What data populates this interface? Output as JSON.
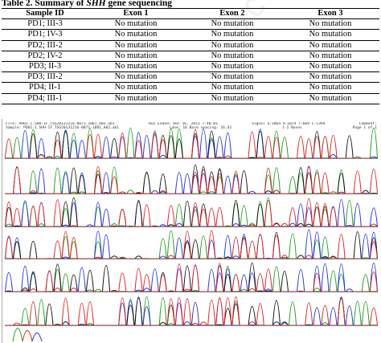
{
  "table": {
    "caption_prefix": "Table 2. Summary of ",
    "caption_gene": "SHH",
    "caption_suffix": " gene sequencing",
    "headers": [
      "Sample ID",
      "Exon 1",
      "Exon 2",
      "Exon 3"
    ],
    "rows": [
      [
        "PD1;  III-3",
        "No mutation",
        "No mutation",
        "No mutation"
      ],
      [
        "PD1;  IV-3",
        "No mutation",
        "No mutation",
        "No mutation"
      ],
      [
        "PD2;  III-2",
        "No mutation",
        "No mutation",
        "No mutation"
      ],
      [
        "PD2;  IV-2",
        "No mutation",
        "No mutation",
        "No mutation"
      ],
      [
        "PD3;  II-3",
        "No mutation",
        "No mutation",
        "No mutation"
      ],
      [
        "PD3;  III-2",
        "No mutation",
        "No mutation",
        "No mutation"
      ],
      [
        "PD4;  II-1",
        "No mutation",
        "No mutation",
        "No mutation"
      ],
      [
        "PD4;  III-1",
        "No mutation",
        "No mutation",
        "No mutation"
      ]
    ]
  },
  "chromatogram": {
    "header_line1_left": "File: PD01-1_SHH-1F_TSS20131216-0071-1081_A02.ab1",
    "header_line1_mid": "Run Ended: Dec 16, 2013  7:40:03",
    "header_line1_right": "Signal G:1064 A:1074 T:669 C:1394",
    "header_line1_end": "Comment:",
    "header_line2_left": "Sample: PD01-1_SHH-1F_TSS20131216-0071-1081_A02.ab1",
    "header_line2_mid": "Lane: 16  Base spacing: 16.41",
    "header_line2_right": "1-1 Bases",
    "header_line2_end": "Page 1 of 1",
    "trace_colors": {
      "A": "#1f9e1f",
      "C": "#2233dd",
      "G": "#111111",
      "T": "#dd2222"
    }
  },
  "watermark": "accepted article"
}
